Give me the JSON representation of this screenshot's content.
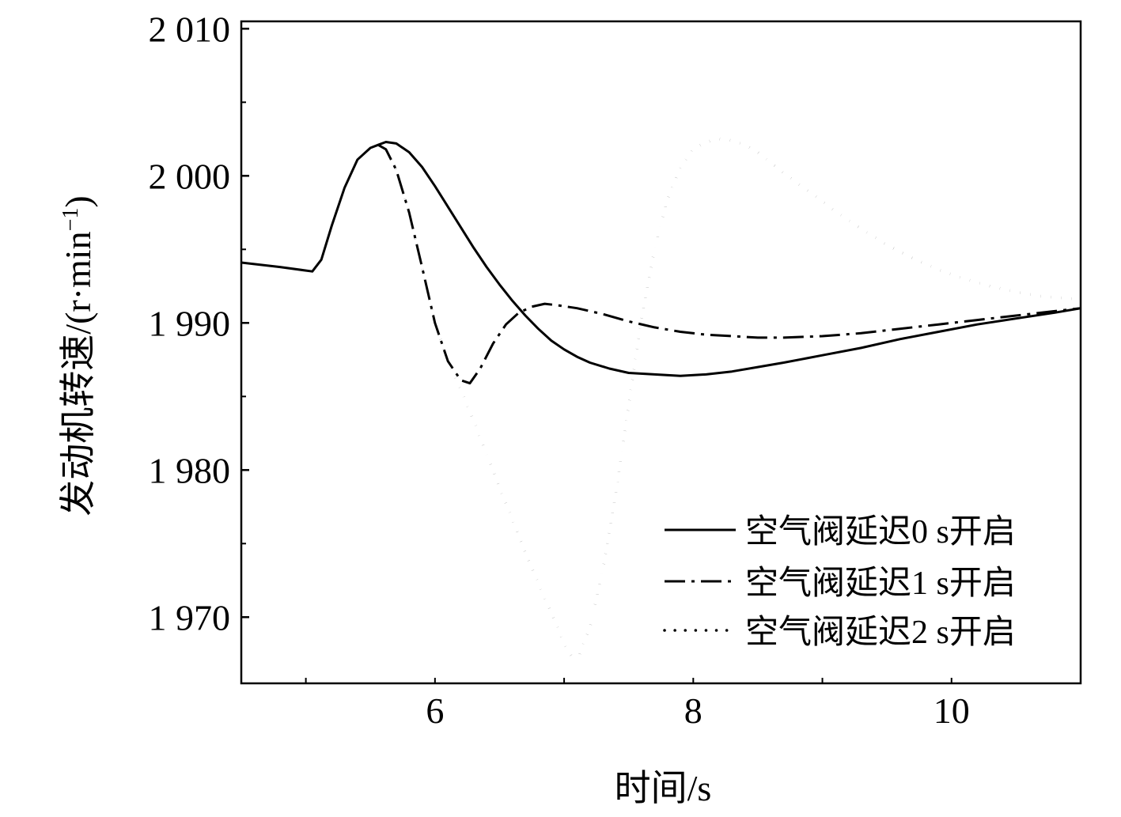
{
  "chart_data": {
    "type": "line",
    "title": "",
    "xlabel": "时间/s",
    "ylabel": "发动机转速/(r·min",
    "ylabel_sup": "−1",
    "ylabel_close": ")",
    "xlim": [
      4.5,
      11.0
    ],
    "ylim": [
      1965.5,
      2010.5
    ],
    "xticks": [
      6,
      8,
      10
    ],
    "xtick_labels": [
      "6",
      "8",
      "10"
    ],
    "xminor": [
      5,
      6,
      7,
      8,
      9,
      10
    ],
    "yticks": [
      1970,
      1980,
      1990,
      2000,
      2010
    ],
    "ytick_labels": [
      "1 970",
      "1 980",
      "1 990",
      "2 000",
      "2 010"
    ],
    "yminor": [
      1975,
      1985,
      1995,
      2005
    ],
    "grid": false,
    "legend_position": "bottom-right",
    "series": [
      {
        "name": "空气阀延迟0 s开启",
        "style": "solid",
        "x": [
          4.5,
          4.8,
          5.05,
          5.12,
          5.2,
          5.3,
          5.4,
          5.5,
          5.56,
          5.62,
          5.7,
          5.8,
          5.9,
          6.0,
          6.1,
          6.2,
          6.3,
          6.4,
          6.5,
          6.6,
          6.7,
          6.8,
          6.9,
          7.0,
          7.1,
          7.2,
          7.35,
          7.5,
          7.7,
          7.9,
          8.1,
          8.3,
          8.5,
          8.7,
          9.0,
          9.3,
          9.6,
          9.9,
          10.2,
          10.5,
          10.8,
          11.0
        ],
        "values": [
          1994.1,
          1993.8,
          1993.5,
          1994.3,
          1996.6,
          1999.2,
          2001.1,
          2001.9,
          2002.1,
          2002.3,
          2002.2,
          2001.6,
          2000.6,
          1999.3,
          1997.9,
          1996.5,
          1995.1,
          1993.8,
          1992.6,
          1991.5,
          1990.5,
          1989.6,
          1988.8,
          1988.2,
          1987.7,
          1987.3,
          1986.9,
          1986.6,
          1986.5,
          1986.4,
          1986.5,
          1986.7,
          1987.0,
          1987.3,
          1987.8,
          1988.3,
          1988.9,
          1989.4,
          1989.9,
          1990.3,
          1990.7,
          1991.0
        ]
      },
      {
        "name": "空气阀延迟1 s开启",
        "style": "dashdot",
        "x": [
          5.56,
          5.62,
          5.7,
          5.8,
          5.9,
          6.0,
          6.1,
          6.2,
          6.27,
          6.35,
          6.45,
          6.55,
          6.65,
          6.75,
          6.85,
          6.95,
          7.1,
          7.3,
          7.5,
          7.7,
          7.9,
          8.1,
          8.3,
          8.5,
          8.7,
          9.0,
          9.3,
          9.6,
          9.9,
          10.2,
          10.5,
          10.8,
          11.0
        ],
        "values": [
          2002.1,
          2001.8,
          2000.4,
          1997.5,
          1993.8,
          1990.0,
          1987.4,
          1986.1,
          1985.9,
          1986.9,
          1988.6,
          1989.9,
          1990.7,
          1991.1,
          1991.3,
          1991.2,
          1991.0,
          1990.6,
          1990.1,
          1989.7,
          1989.4,
          1989.2,
          1989.1,
          1989.0,
          1989.0,
          1989.1,
          1989.3,
          1989.6,
          1989.9,
          1990.2,
          1990.5,
          1990.8,
          1991.0
        ]
      },
      {
        "name": "空气阀延迟2 s开启",
        "style": "dotted",
        "x": [
          5.56,
          5.62,
          5.7,
          5.8,
          5.9,
          6.0,
          6.1,
          6.2,
          6.3,
          6.4,
          6.5,
          6.6,
          6.7,
          6.8,
          6.9,
          7.0,
          7.06,
          7.12,
          7.2,
          7.3,
          7.4,
          7.5,
          7.6,
          7.7,
          7.8,
          7.9,
          8.0,
          8.1,
          8.2,
          8.3,
          8.4,
          8.5,
          8.7,
          8.9,
          9.1,
          9.3,
          9.5,
          9.7,
          9.9,
          10.1,
          10.3,
          10.5,
          10.7,
          11.0
        ],
        "values": [
          2002.1,
          2001.8,
          2000.4,
          1997.5,
          1993.8,
          1990.0,
          1987.4,
          1985.5,
          1983.3,
          1981.1,
          1978.8,
          1976.6,
          1974.4,
          1972.3,
          1970.3,
          1968.2,
          1967.3,
          1967.5,
          1969.3,
          1973.2,
          1978.4,
          1984.4,
          1990.3,
          1995.0,
          1998.4,
          2000.6,
          2001.8,
          2002.3,
          2002.5,
          2002.4,
          2002.1,
          2001.6,
          2000.2,
          1998.9,
          1997.6,
          1996.4,
          1995.3,
          1994.4,
          1993.6,
          1993.0,
          1992.5,
          1992.1,
          1991.8,
          1991.6
        ]
      }
    ]
  }
}
